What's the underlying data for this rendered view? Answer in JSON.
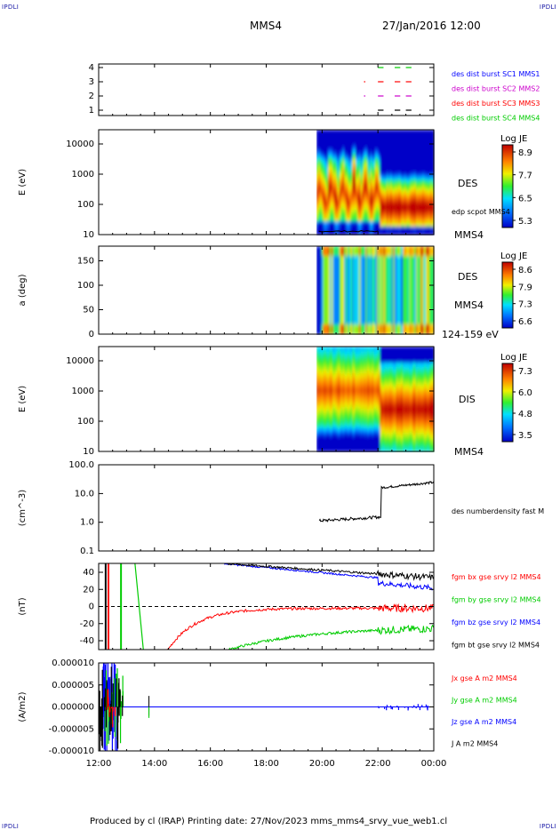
{
  "corners": {
    "top_left": "IPDLI",
    "top_right": "IPDLI",
    "bottom_left": "IPDLI",
    "bottom_right": "IPDLI"
  },
  "header": {
    "spacecraft": "MMS4",
    "date": "27/Jan/2016 12:00"
  },
  "footer": {
    "text": "Produced by cl (IRAP)   Printing date: 27/Nov/2023   mms_mms4_srvy_vue_web1.cl"
  },
  "colors": {
    "mms1": "#0000ff",
    "mms2": "#cc00cc",
    "mms3": "#ff0000",
    "mms4": "#00cc00",
    "black": "#000000"
  },
  "x_ticks": [
    "12:00",
    "14:00",
    "16:00",
    "18:00",
    "20:00",
    "22:00",
    "00:00"
  ],
  "chart_data": [
    {
      "id": "burst",
      "type": "scatter",
      "ylim": [
        1,
        4
      ],
      "ticks": [
        "1",
        "2",
        "3",
        "4"
      ],
      "legend": [
        "des dist burst SC1 MMS1",
        "des dist burst SC2 MMS2",
        "des dist burst SC3 MMS3",
        "des dist burst SC4 MMS4"
      ],
      "segments": [
        {
          "sc": 4,
          "color": "#00cc00",
          "x": [
            [
              22.0,
              22.2
            ],
            [
              22.6,
              22.8
            ],
            [
              23.0,
              23.2
            ]
          ]
        },
        {
          "sc": 3,
          "color": "#ff0000",
          "x": [
            [
              21.5,
              21.55
            ],
            [
              22.0,
              22.2
            ],
            [
              22.6,
              22.8
            ],
            [
              23.0,
              23.2
            ]
          ]
        },
        {
          "sc": 2,
          "color": "#cc00cc",
          "x": [
            [
              21.5,
              21.55
            ],
            [
              22.0,
              22.2
            ],
            [
              22.6,
              22.8
            ],
            [
              23.0,
              23.2
            ]
          ]
        },
        {
          "sc": 1,
          "color": "#000000",
          "x": [
            [
              22.0,
              22.2
            ],
            [
              22.6,
              22.8
            ],
            [
              23.0,
              23.2
            ]
          ]
        }
      ]
    },
    {
      "id": "des_energy",
      "type": "heatmap",
      "ylabel": "E (eV)",
      "yticks": [
        "10",
        "100",
        "1000",
        "10000"
      ],
      "right_labels": [
        "DES",
        "edp scpot MMS4",
        "MMS4"
      ],
      "colorbar": {
        "title": "Log JE",
        "ticks": [
          "8.9",
          "7.7",
          "6.5",
          "5.3"
        ]
      }
    },
    {
      "id": "des_pitch",
      "type": "heatmap",
      "ylabel": "a (deg)",
      "yticks": [
        "0",
        "50",
        "100",
        "150"
      ],
      "right_labels": [
        "DES",
        "MMS4",
        "124-159 eV"
      ],
      "colorbar": {
        "title": "Log JE",
        "ticks": [
          "8.6",
          "7.9",
          "7.3",
          "6.6"
        ]
      }
    },
    {
      "id": "dis_energy",
      "type": "heatmap",
      "ylabel": "E (eV)",
      "yticks": [
        "10",
        "100",
        "1000",
        "10000"
      ],
      "right_labels": [
        "DIS",
        "MMS4"
      ],
      "colorbar": {
        "title": "Log JE",
        "ticks": [
          "7.3",
          "6.0",
          "4.8",
          "3.5"
        ]
      }
    },
    {
      "id": "density",
      "type": "line",
      "ylabel": "(cm^-3)",
      "yticks": [
        "0.1",
        "1.0",
        "10.0",
        "100.0"
      ],
      "legend": [
        "des numberdensity fast M"
      ]
    },
    {
      "id": "fgm",
      "type": "line",
      "ylabel": "(nT)",
      "yticks": [
        "-40",
        "-20",
        "0",
        "20",
        "40"
      ],
      "legend": [
        "fgm bx gse srvy l2 MMS4",
        "fgm by gse srvy l2 MMS4",
        "fgm bz gse srvy l2 MMS4",
        "fgm bt gse srvy l2 MMS4"
      ]
    },
    {
      "id": "current",
      "type": "line",
      "ylabel": "(A/m2)",
      "yticks": [
        "-0.000010",
        "-0.000005",
        "0.000000",
        "0.000005",
        "0.000010"
      ],
      "legend": [
        "Jx gse A m2 MMS4",
        "Jy gse A m2 MMS4",
        "Jz gse A m2 MMS4",
        "J A m2 MMS4"
      ]
    }
  ]
}
